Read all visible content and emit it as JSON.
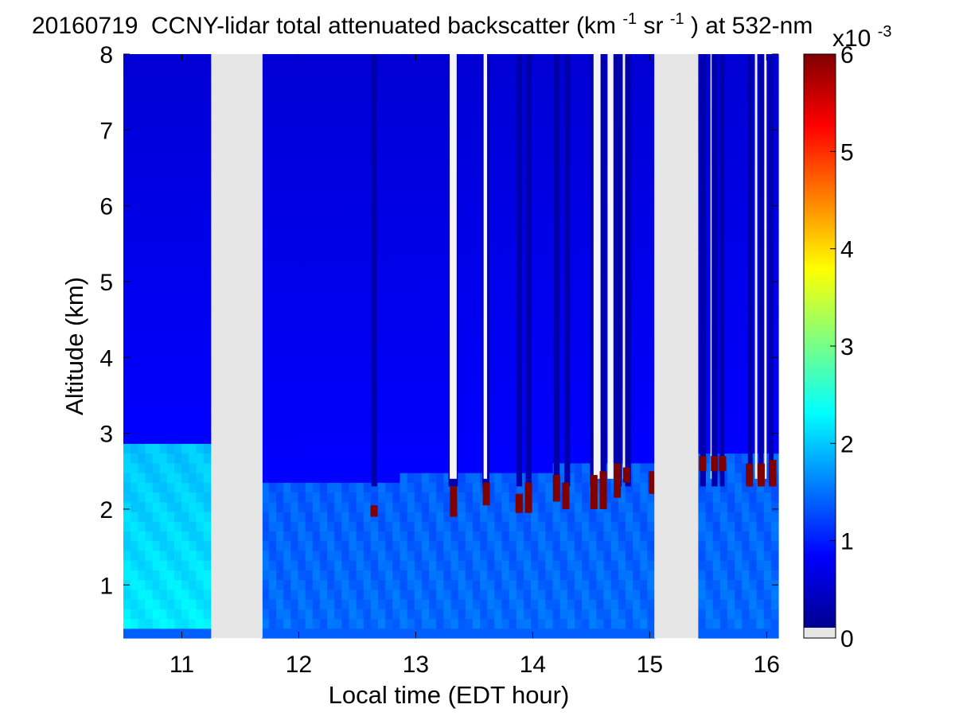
{
  "chart_data": {
    "type": "heatmap",
    "title": {
      "date": "20160719",
      "text_main": "CCNY-lidar total attenuated backscatter (km",
      "sup1": "-1",
      "text_mid": "sr",
      "sup2": "-1",
      "text_end": ") at 532-nm"
    },
    "xlabel": "Local time (EDT hour)",
    "ylabel": "Altitude (km)",
    "xlim": [
      10.5,
      16.1
    ],
    "ylim": [
      0.3,
      8.0
    ],
    "x_ticks": [
      11,
      12,
      13,
      14,
      15,
      16
    ],
    "x_tick_labels": [
      "11",
      "12",
      "13",
      "14",
      "15",
      "16"
    ],
    "y_ticks": [
      1,
      2,
      3,
      4,
      5,
      6,
      7,
      8
    ],
    "y_tick_labels": [
      "1",
      "2",
      "3",
      "4",
      "5",
      "6",
      "7",
      "8"
    ],
    "grid": false,
    "colormap": "jet",
    "nodata_color": "#e6e6e6",
    "colorbar": {
      "range": [
        0,
        6
      ],
      "ticks": [
        0,
        1,
        2,
        3,
        4,
        5,
        6
      ],
      "tick_labels": [
        "0",
        "1",
        "2",
        "3",
        "4",
        "5",
        "6"
      ],
      "exponent_base": "x10",
      "exponent": "-3"
    },
    "data_gaps_hours": [
      [
        11.27,
        11.69
      ],
      [
        15.04,
        15.39
      ]
    ],
    "boundary_layer": {
      "description_values": "approximate backscatter x10^-3 by altitude band",
      "near_surface_km": [
        0.3,
        0.4
      ],
      "near_surface_value": 1.3,
      "morning_mixed_layer_top_km": 2.9,
      "morning_max_value": 2.2,
      "afternoon_value": 1.4,
      "free_troposphere_value": 0.75,
      "upper_value": 0.5
    },
    "cloud_tops": [
      {
        "time": 12.64,
        "base_km": 1.9,
        "top_km": 2.05
      },
      {
        "time": 13.32,
        "base_km": 1.9,
        "top_km": 2.3
      },
      {
        "time": 13.6,
        "base_km": 2.05,
        "top_km": 2.35
      },
      {
        "time": 13.88,
        "base_km": 1.95,
        "top_km": 2.2
      },
      {
        "time": 13.96,
        "base_km": 1.95,
        "top_km": 2.35
      },
      {
        "time": 14.2,
        "base_km": 2.1,
        "top_km": 2.45
      },
      {
        "time": 14.28,
        "base_km": 2.0,
        "top_km": 2.35
      },
      {
        "time": 14.52,
        "base_km": 2.0,
        "top_km": 2.45
      },
      {
        "time": 14.6,
        "base_km": 2.0,
        "top_km": 2.5
      },
      {
        "time": 14.72,
        "base_km": 2.15,
        "top_km": 2.6
      },
      {
        "time": 14.8,
        "base_km": 2.35,
        "top_km": 2.55
      },
      {
        "time": 15.02,
        "base_km": 2.2,
        "top_km": 2.5
      },
      {
        "time": 15.45,
        "base_km": 2.5,
        "top_km": 2.7
      },
      {
        "time": 15.55,
        "base_km": 2.5,
        "top_km": 2.7
      },
      {
        "time": 15.62,
        "base_km": 2.5,
        "top_km": 2.7
      },
      {
        "time": 15.85,
        "base_km": 2.3,
        "top_km": 2.6
      },
      {
        "time": 15.95,
        "base_km": 2.3,
        "top_km": 2.6
      },
      {
        "time": 16.05,
        "base_km": 2.3,
        "top_km": 2.65
      }
    ],
    "attenuated_columns_hours": [
      [
        12.62,
        12.67
      ],
      [
        13.28,
        13.36
      ],
      [
        13.57,
        13.63
      ],
      [
        13.86,
        13.91
      ],
      [
        13.94,
        13.99
      ],
      [
        14.18,
        14.23
      ],
      [
        14.27,
        14.32
      ],
      [
        14.49,
        14.55
      ],
      [
        14.58,
        14.63
      ],
      [
        14.7,
        14.76
      ],
      [
        14.79,
        14.84
      ],
      [
        15.43,
        15.48
      ],
      [
        15.53,
        15.58
      ],
      [
        15.6,
        15.64
      ],
      [
        15.84,
        15.88
      ],
      [
        15.93,
        15.97
      ],
      [
        16.02,
        16.06
      ]
    ],
    "missing_signal_columns_hours": [
      [
        13.29,
        13.35
      ],
      [
        13.58,
        13.61
      ],
      [
        14.52,
        14.58
      ],
      [
        14.64,
        14.69
      ],
      [
        14.77,
        14.79
      ],
      [
        15.52,
        15.53
      ],
      [
        15.9,
        15.92
      ],
      [
        15.98,
        16.0
      ]
    ]
  }
}
